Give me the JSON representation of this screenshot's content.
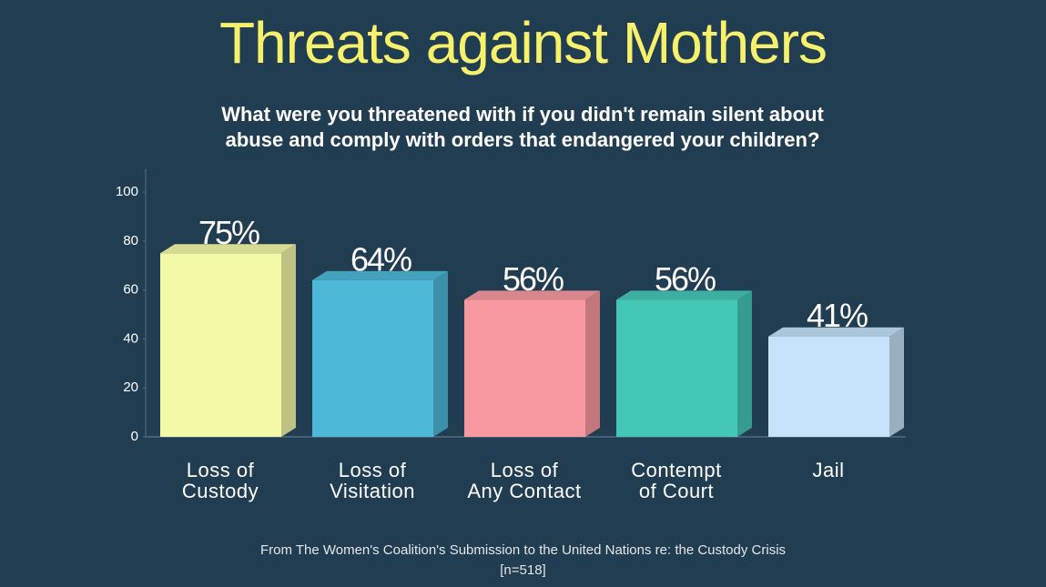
{
  "chart_data": {
    "type": "bar",
    "title": "Threats against Mothers",
    "subtitle": "What were you threatened with if you didn't remain silent about abuse and comply with orders that endangered your children?",
    "categories": [
      "Loss of\nCustody",
      "Loss of\nVisitation",
      "Loss of\nAny Contact",
      "Contempt\nof Court",
      "Jail"
    ],
    "values": [
      75,
      64,
      56,
      56,
      41
    ],
    "value_labels": [
      "75%",
      "64%",
      "56%",
      "56%",
      "41%"
    ],
    "colors": [
      "#f3f9a7",
      "#4eb8d9",
      "#f7999f",
      "#45c7b8",
      "#c5e2f8"
    ],
    "ylim": [
      0,
      100
    ],
    "yticks": [
      0,
      20,
      40,
      60,
      80,
      100
    ],
    "grid": false,
    "source": "From The Women's Coalition's Submission to the United Nations re: the Custody Crisis",
    "note": "[n=518]"
  }
}
